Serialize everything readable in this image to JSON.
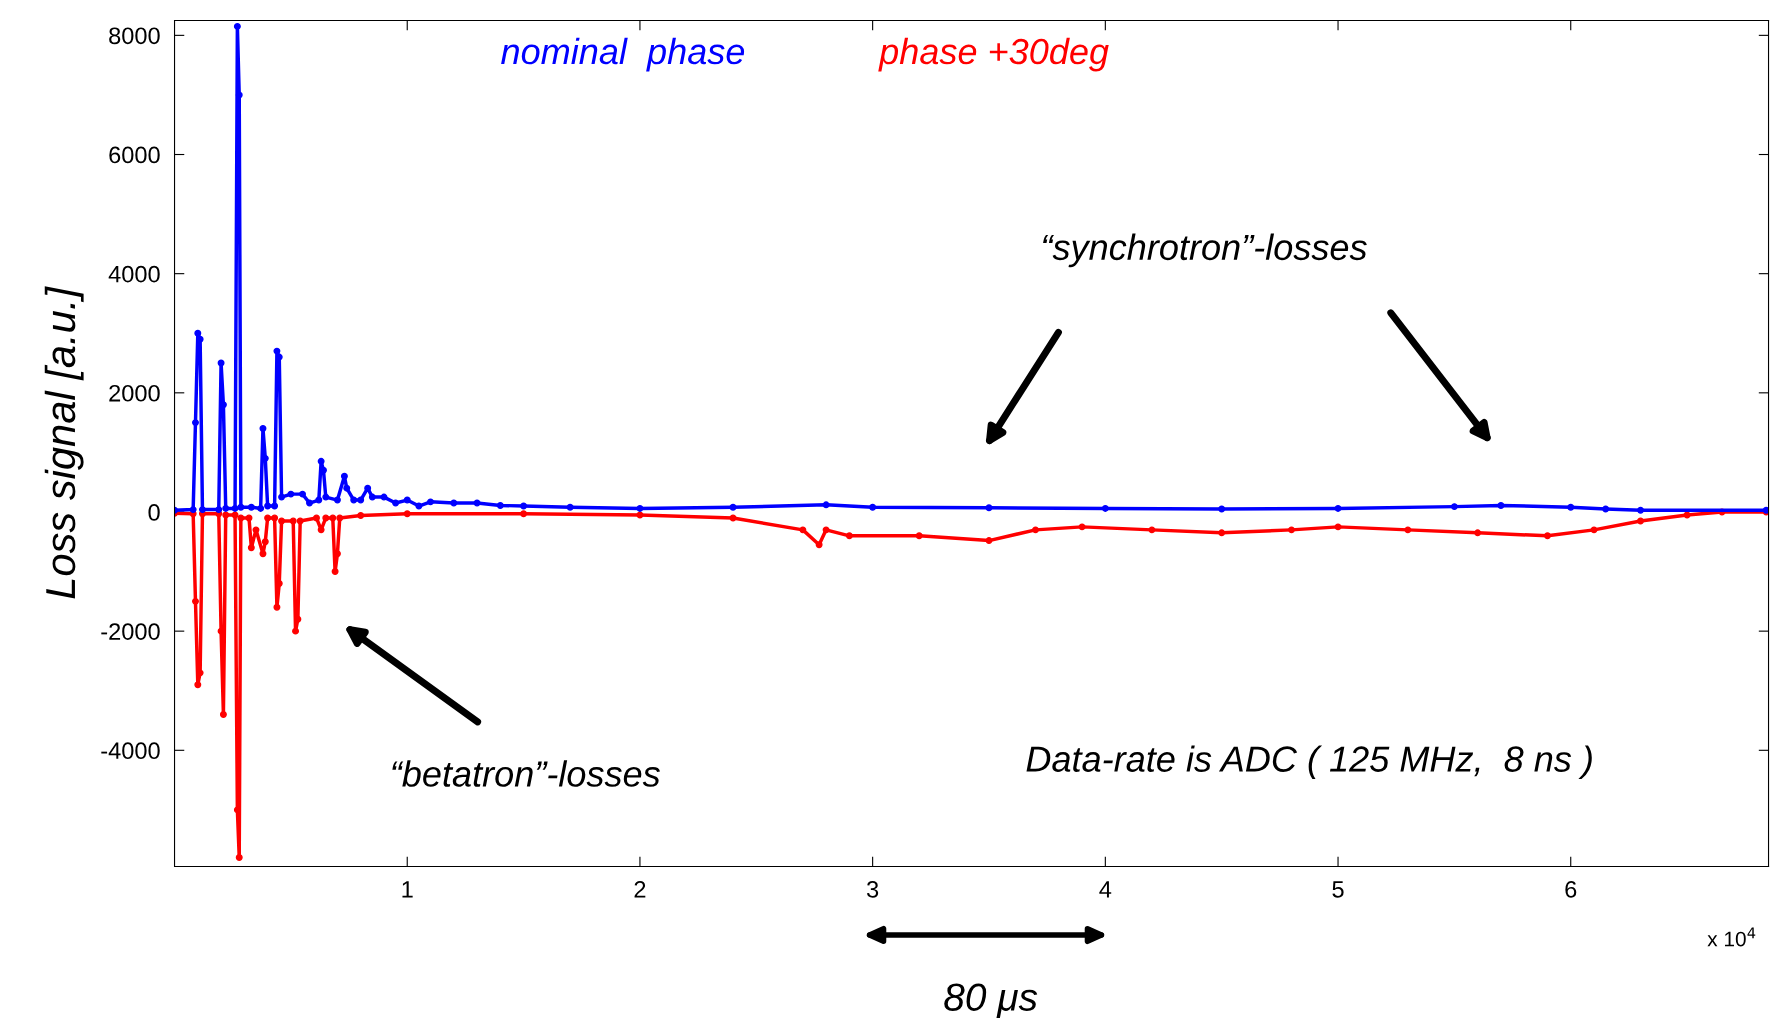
{
  "chart_data": {
    "type": "line",
    "ylabel": "Loss signal [a.u.]",
    "xlim": [
      0,
      6.85
    ],
    "ylim": [
      -5950,
      8250
    ],
    "xticks": [
      1,
      2,
      3,
      4,
      5,
      6
    ],
    "yticks": [
      -4000,
      -2000,
      0,
      2000,
      4000,
      6000,
      8000
    ],
    "grid": false,
    "legend": false,
    "marker": "circle",
    "line_style": "solid",
    "series": [
      {
        "name": "phase +30deg",
        "color": "#ff0000",
        "x": [
          0,
          0.08,
          0.09,
          0.1,
          0.11,
          0.12,
          0.19,
          0.2,
          0.21,
          0.22,
          0.26,
          0.27,
          0.278,
          0.285,
          0.32,
          0.33,
          0.35,
          0.38,
          0.39,
          0.4,
          0.43,
          0.44,
          0.45,
          0.46,
          0.51,
          0.52,
          0.53,
          0.54,
          0.61,
          0.63,
          0.65,
          0.68,
          0.69,
          0.7,
          0.71,
          0.8,
          1.0,
          1.5,
          2.0,
          2.4,
          2.7,
          2.77,
          2.8,
          2.9,
          3.2,
          3.5,
          3.7,
          3.9,
          4.2,
          4.5,
          4.8,
          5.0,
          5.3,
          5.6,
          5.9,
          6.1,
          6.3,
          6.5,
          6.65,
          6.84
        ],
        "values": [
          -20,
          -30,
          -1500,
          -2900,
          -2700,
          -30,
          -30,
          -2000,
          -3400,
          -50,
          -50,
          -5000,
          -5800,
          -100,
          -100,
          -600,
          -300,
          -700,
          -500,
          -100,
          -100,
          -1600,
          -1200,
          -150,
          -150,
          -2000,
          -1800,
          -150,
          -100,
          -300,
          -100,
          -100,
          -1000,
          -700,
          -100,
          -60,
          -30,
          -30,
          -50,
          -100,
          -300,
          -550,
          -300,
          -400,
          -400,
          -480,
          -300,
          -250,
          -300,
          -350,
          -300,
          -250,
          -300,
          -350,
          -400,
          -300,
          -150,
          -50,
          0,
          0
        ]
      },
      {
        "name": "nominal  phase",
        "color": "#0000ff",
        "x": [
          0,
          0.08,
          0.09,
          0.1,
          0.11,
          0.12,
          0.19,
          0.2,
          0.21,
          0.22,
          0.26,
          0.27,
          0.278,
          0.285,
          0.33,
          0.37,
          0.38,
          0.39,
          0.4,
          0.43,
          0.44,
          0.45,
          0.46,
          0.5,
          0.55,
          0.58,
          0.62,
          0.63,
          0.64,
          0.65,
          0.7,
          0.73,
          0.74,
          0.77,
          0.8,
          0.83,
          0.85,
          0.9,
          0.95,
          1.0,
          1.05,
          1.1,
          1.2,
          1.3,
          1.4,
          1.5,
          1.7,
          2.0,
          2.4,
          2.8,
          3.0,
          3.5,
          4.0,
          4.5,
          5.0,
          5.5,
          5.7,
          6.0,
          6.15,
          6.3,
          6.84
        ],
        "values": [
          30,
          40,
          1500,
          3000,
          2900,
          40,
          40,
          2500,
          1800,
          60,
          60,
          8150,
          7000,
          80,
          80,
          60,
          1400,
          900,
          100,
          100,
          2700,
          2600,
          250,
          300,
          300,
          150,
          200,
          850,
          700,
          250,
          200,
          600,
          400,
          200,
          200,
          400,
          250,
          250,
          150,
          200,
          100,
          170,
          150,
          150,
          110,
          100,
          80,
          60,
          80,
          120,
          80,
          70,
          60,
          50,
          60,
          90,
          110,
          80,
          50,
          30,
          30
        ]
      }
    ],
    "annotations": [
      "“synchrotron”-losses",
      "“betatron”-losses",
      "Data-rate is ADC ( 125 MHz,  8 ns )",
      "80 μs",
      "x 10$^{4}$"
    ]
  }
}
